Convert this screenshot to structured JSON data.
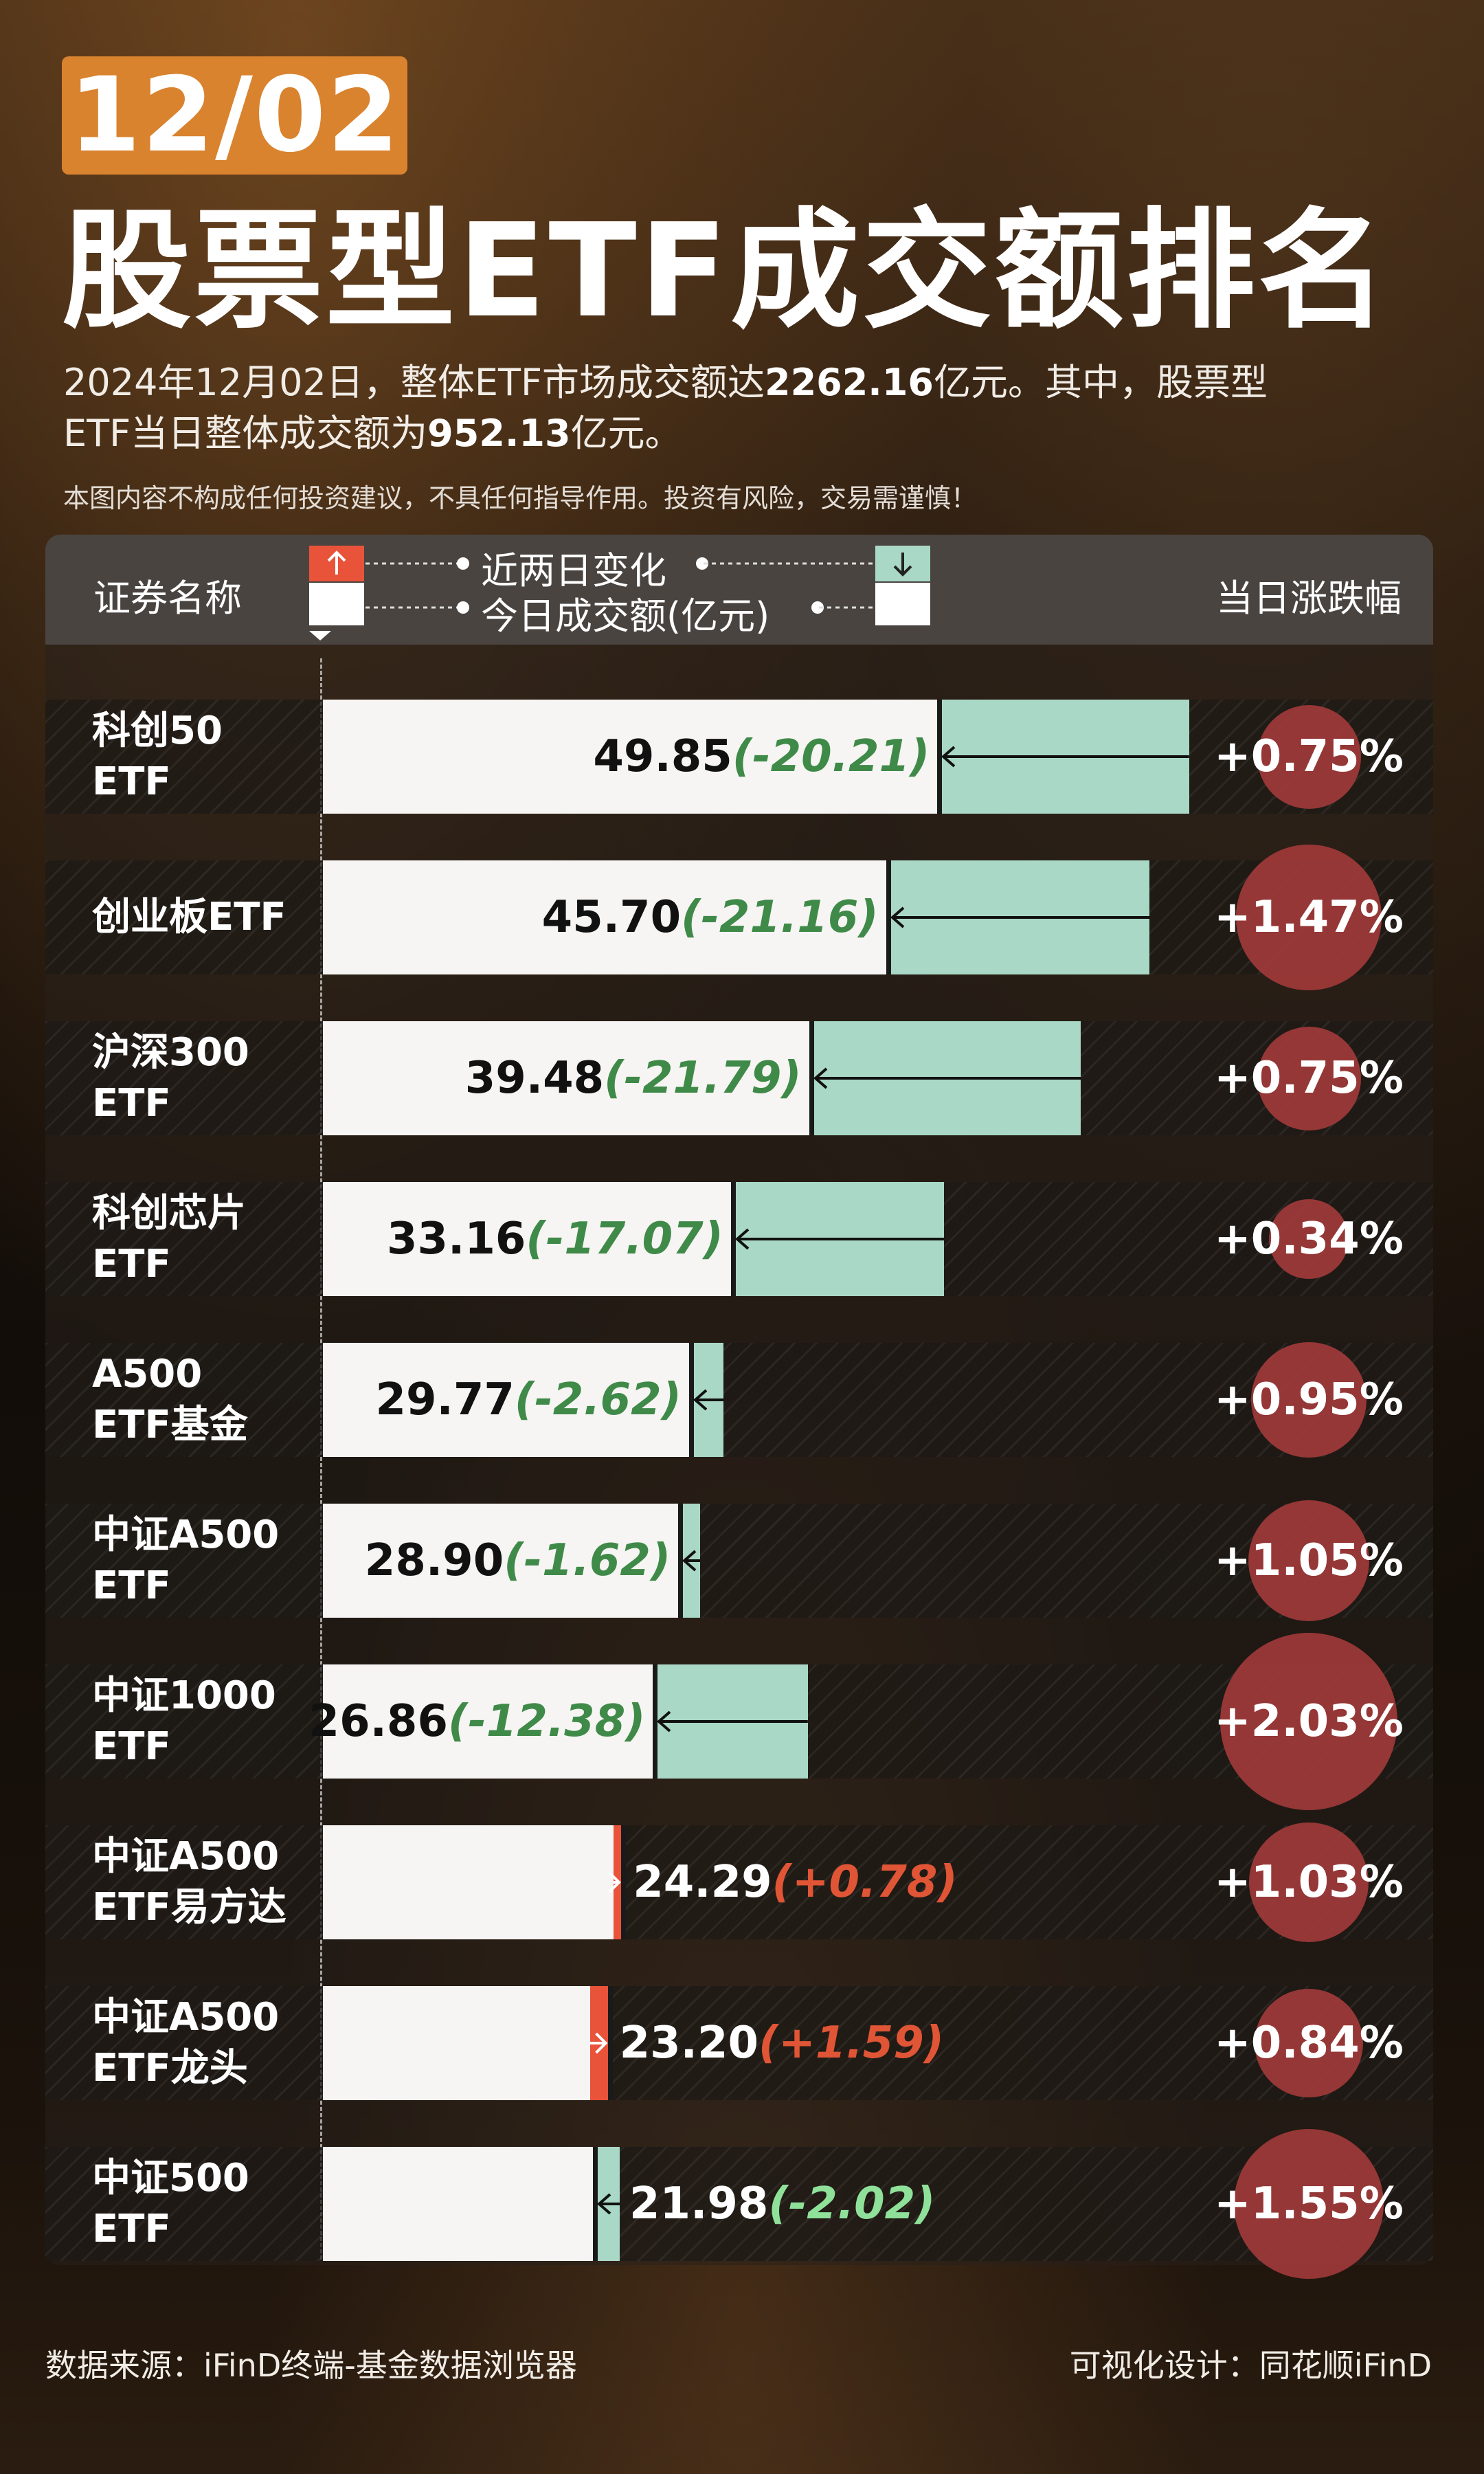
{
  "header": {
    "date": "12/02",
    "title": "股票型ETF成交额排名",
    "sub_line1_pre": "2024年12月02日，整体ETF市场成交额达",
    "sub_line1_value": "2262.16",
    "sub_line1_post": "亿元。其中，股票型",
    "sub_line2_pre": "ETF当日整体成交额为",
    "sub_line2_value": "952.13",
    "sub_line2_post": "亿元。",
    "disclaimer": "本图内容不构成任何投资建议，不具任何指导作用。投资有风险，交易需谨慎！"
  },
  "table_header": {
    "col_name": "证券名称",
    "legend_change": "近两日变化",
    "legend_volume": "今日成交额(亿元)",
    "col_pct": "当日涨跌幅"
  },
  "colors": {
    "increase": "#e8533a",
    "decrease": "#a9d8c6",
    "pct_circle": "#a03a3a",
    "accent": "#d9832f"
  },
  "chart_data": {
    "type": "bar",
    "categories": [
      [
        "科创50",
        "ETF"
      ],
      [
        "创业板ETF"
      ],
      [
        "沪深300",
        "ETF"
      ],
      [
        "科创芯片",
        "ETF"
      ],
      [
        "A500",
        "ETF基金"
      ],
      [
        "中证A500",
        "ETF"
      ],
      [
        "中证1000",
        "ETF"
      ],
      [
        "中证A500",
        "ETF易方达"
      ],
      [
        "中证A500",
        "ETF龙头"
      ],
      [
        "中证500",
        "ETF"
      ]
    ],
    "volume": [
      49.85,
      45.7,
      39.48,
      33.16,
      29.77,
      28.9,
      26.86,
      24.29,
      23.2,
      21.98
    ],
    "volume_labels": [
      "49.85",
      "45.70",
      "39.48",
      "33.16",
      "29.77",
      "28.90",
      "26.86",
      "24.29",
      "23.20",
      "21.98"
    ],
    "change": [
      -20.21,
      -21.16,
      -21.79,
      -17.07,
      -2.62,
      -1.62,
      -12.38,
      0.78,
      1.59,
      -2.02
    ],
    "change_labels": [
      "(-20.21)",
      "(-21.16)",
      "(-21.79)",
      "(-17.07)",
      "(-2.62)",
      "(-1.62)",
      "(-12.38)",
      "(+0.78)",
      "(+1.59)",
      "(-2.02)"
    ],
    "pct": [
      0.75,
      1.47,
      0.75,
      0.34,
      0.95,
      1.05,
      2.03,
      1.03,
      0.84,
      1.55
    ],
    "pct_labels": [
      "+0.75%",
      "+1.47%",
      "+0.75%",
      "+0.34%",
      "+0.95%",
      "+1.05%",
      "+2.03%",
      "+1.03%",
      "+0.84%",
      "+1.55%"
    ]
  },
  "footer": {
    "source": "数据来源：iFinD终端-基金数据浏览器",
    "design": "可视化设计：同花顺iFinD"
  }
}
